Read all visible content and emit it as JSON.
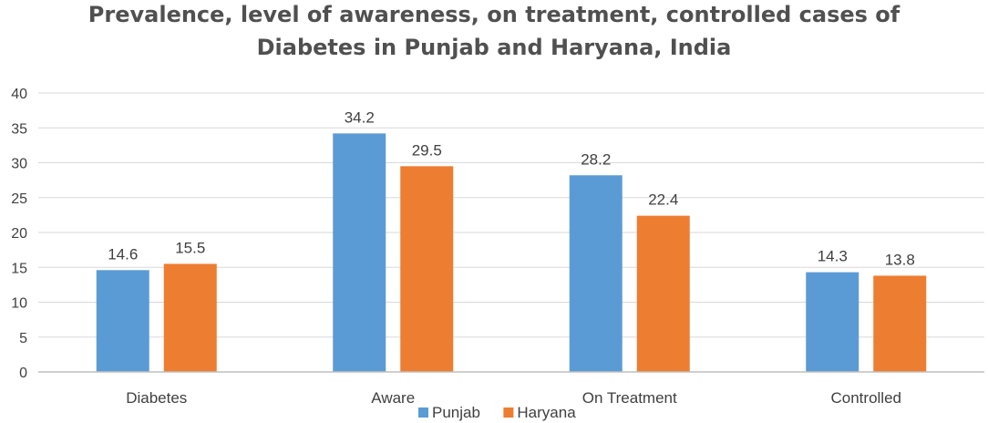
{
  "chart_data": {
    "type": "bar",
    "title_line1": "Prevalence, level of awareness, on treatment, controlled cases of",
    "title_line2": "Diabetes in Punjab and Haryana,  India",
    "categories": [
      "Diabetes",
      "Aware",
      "On Treatment",
      "Controlled"
    ],
    "series": [
      {
        "name": "Punjab",
        "values": [
          14.6,
          34.2,
          28.2,
          14.3
        ],
        "color": "#5b9bd5"
      },
      {
        "name": "Haryana",
        "values": [
          15.5,
          29.5,
          22.4,
          13.8
        ],
        "color": "#ed7d31"
      }
    ],
    "yticks": [
      0,
      5,
      10,
      15,
      20,
      25,
      30,
      35,
      40
    ],
    "ylim": [
      0,
      40
    ],
    "grid": true,
    "legend_position": "bottom",
    "gridline_color": "#d9d9d9",
    "axis_color": "#bfbfbf"
  }
}
